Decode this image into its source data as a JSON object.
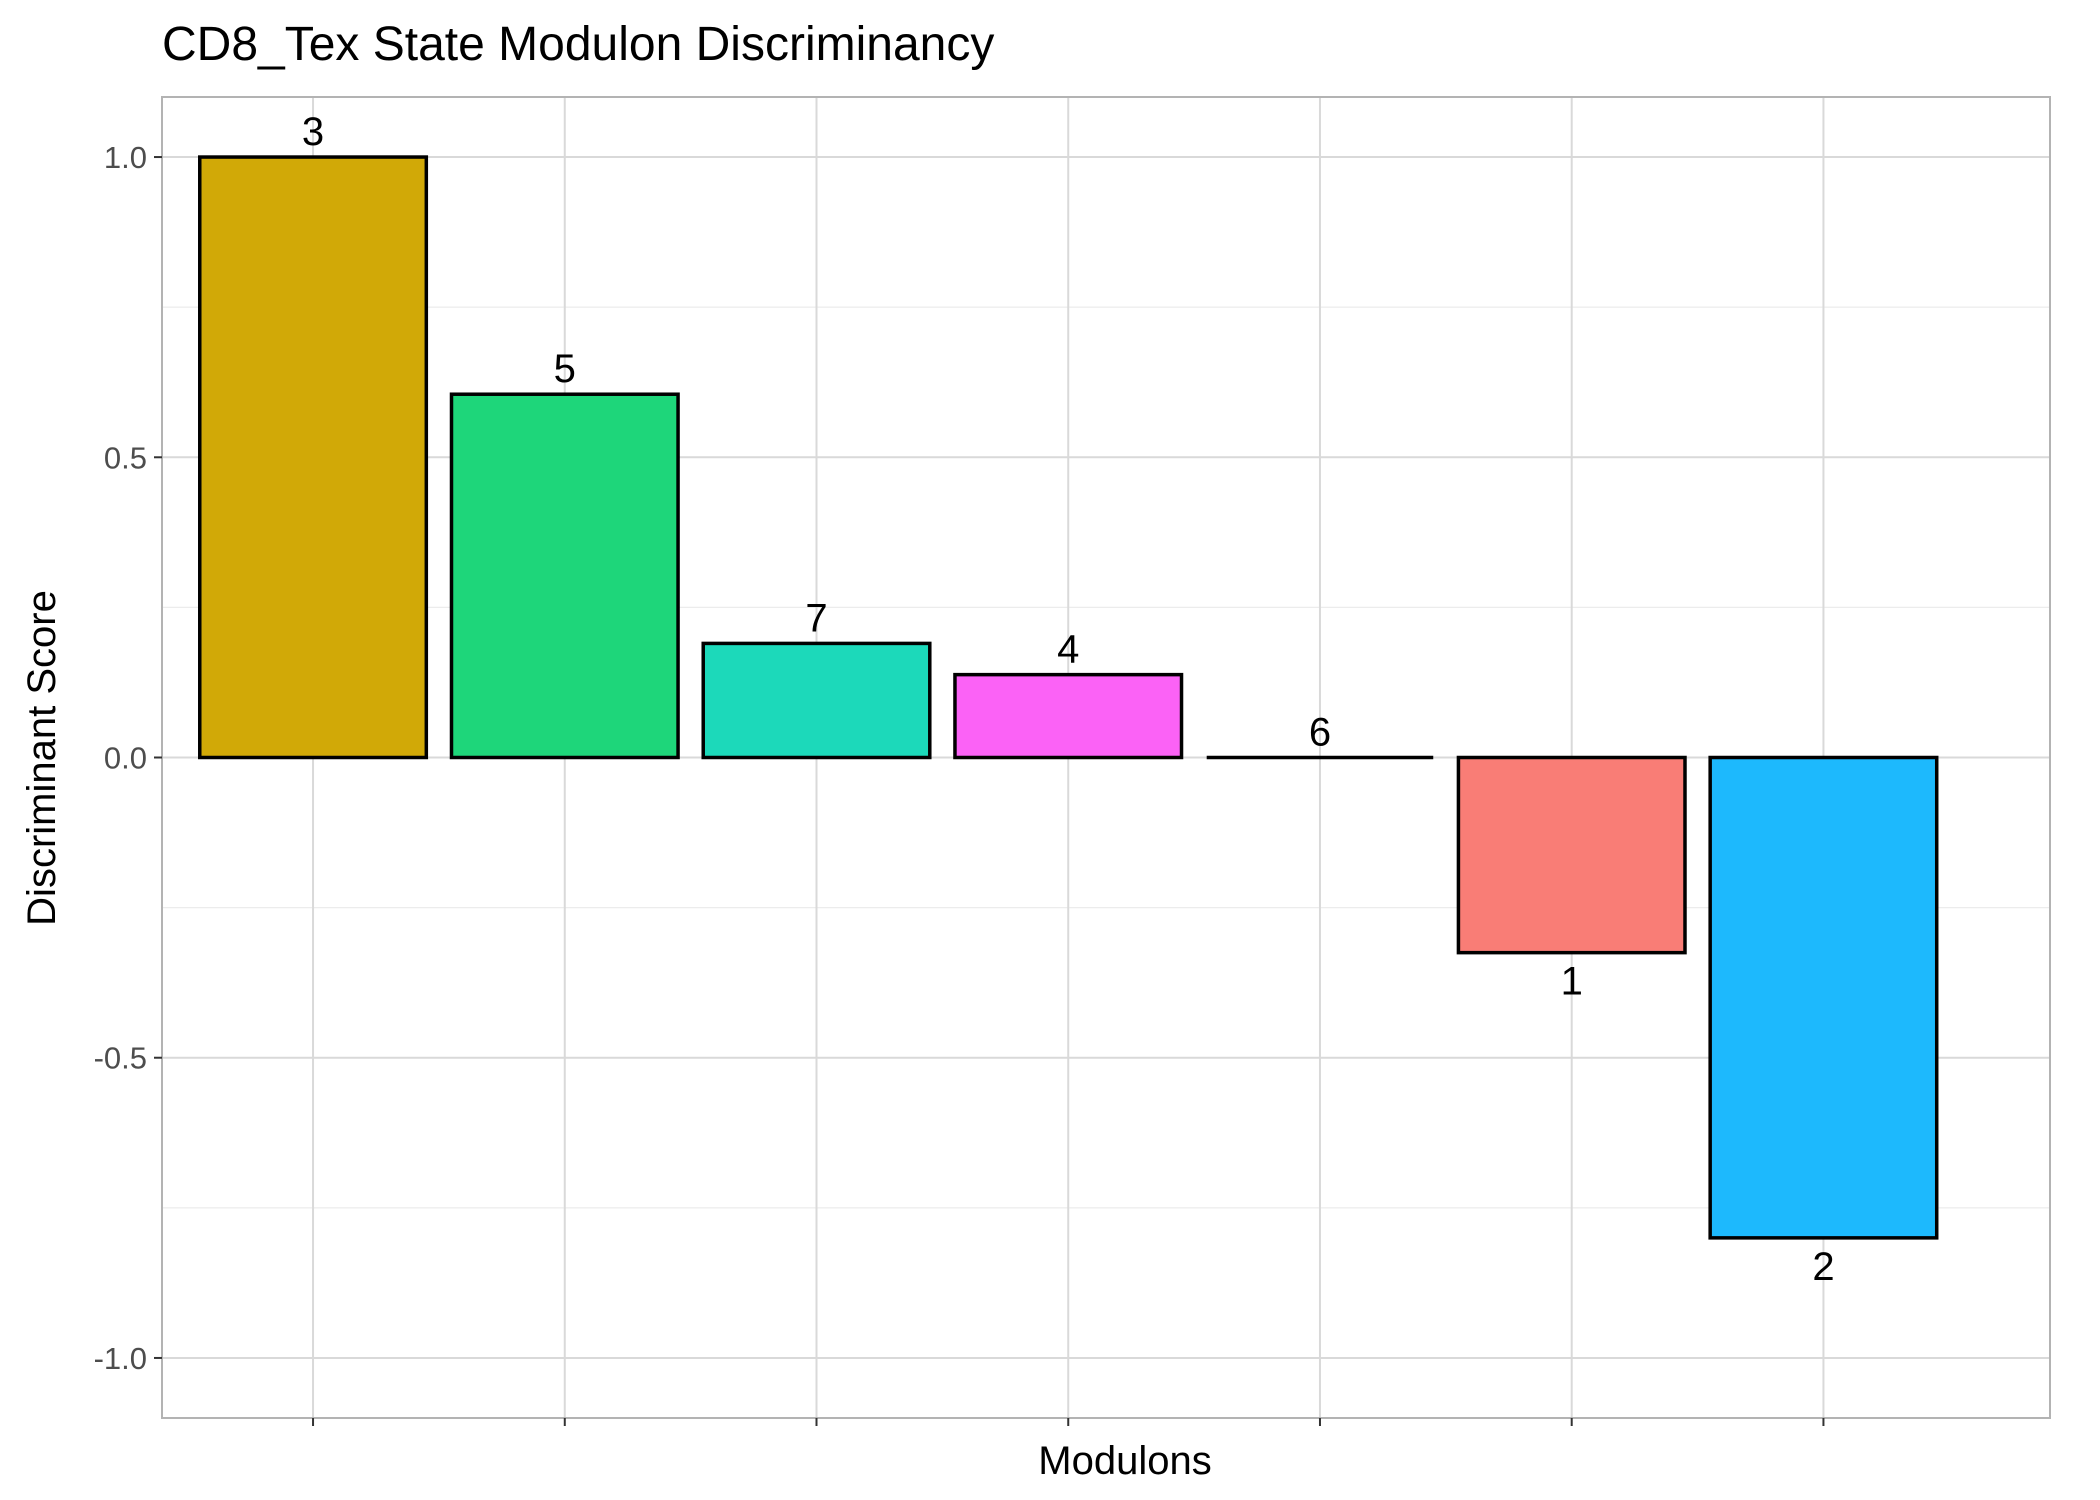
{
  "chart_data": {
    "type": "bar",
    "title": "CD8_Tex State Modulon Discriminancy",
    "xlabel": "Modulons",
    "ylabel": "Discriminant Score",
    "ylim": [
      -1.1,
      1.1
    ],
    "y_ticks": [
      -1.0,
      -0.5,
      0.0,
      0.5,
      1.0
    ],
    "y_tick_labels": [
      "-1.0",
      "-0.5",
      "0.0",
      "0.5",
      "1.0"
    ],
    "grid": true,
    "legend": "none",
    "categories": [
      "3",
      "5",
      "7",
      "4",
      "6",
      "1",
      "2"
    ],
    "values": [
      1.0,
      0.605,
      0.19,
      0.138,
      0.0,
      -0.325,
      -0.8
    ],
    "colors": [
      "#D1A907",
      "#1ED67A",
      "#1CD9BA",
      "#FB62F6",
      "#000000",
      "#F97D76",
      "#1DB9FD"
    ]
  }
}
